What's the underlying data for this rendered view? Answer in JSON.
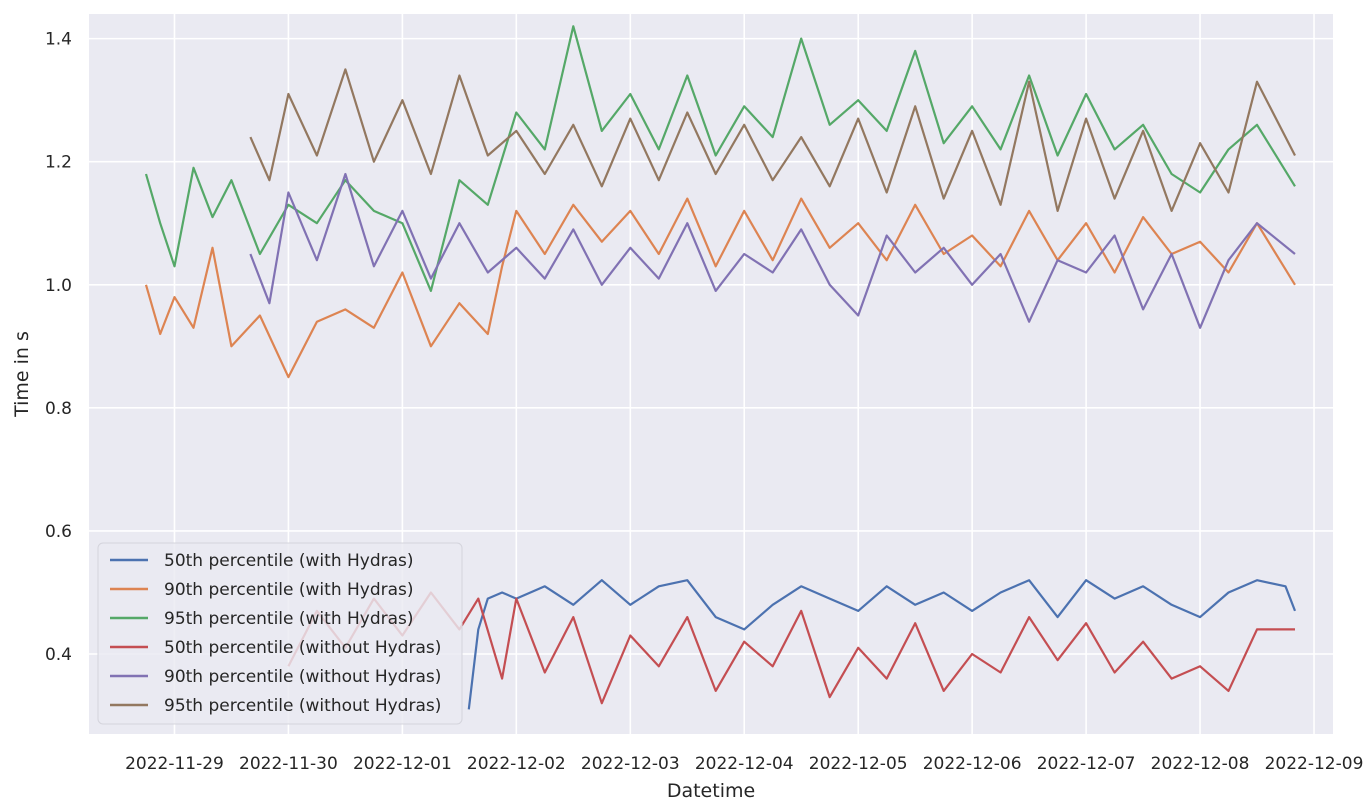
{
  "chart_data": {
    "type": "line",
    "title": "",
    "xlabel": "Datetime",
    "ylabel": "Time in s",
    "x_tick_labels": [
      "2022-11-29",
      "2022-11-30",
      "2022-12-01",
      "2022-12-02",
      "2022-12-03",
      "2022-12-04",
      "2022-12-05",
      "2022-12-06",
      "2022-12-07",
      "2022-12-08",
      "2022-12-09"
    ],
    "y_tick_labels": [
      "0.4",
      "0.6",
      "0.8",
      "1.0",
      "1.2",
      "1.4"
    ],
    "y_ticks": [
      0.4,
      0.6,
      0.8,
      1.0,
      1.2,
      1.4
    ],
    "xlim": [
      "2022-11-28T06:00",
      "2022-12-09T04:00"
    ],
    "ylim": [
      0.27,
      1.44
    ],
    "grid": true,
    "background": "#eaeaf2",
    "legend_position": "lower-left",
    "series": [
      {
        "name": "50th percentile (with Hydras)",
        "color": "#4c72b0",
        "points": [
          [
            "2022-12-01T14:00",
            0.31
          ],
          [
            "2022-12-01T16:00",
            0.44
          ],
          [
            "2022-12-01T18:00",
            0.49
          ],
          [
            "2022-12-01T21:00",
            0.5
          ],
          [
            "2022-12-02T00:00",
            0.49
          ],
          [
            "2022-12-02T06:00",
            0.51
          ],
          [
            "2022-12-02T12:00",
            0.48
          ],
          [
            "2022-12-02T18:00",
            0.52
          ],
          [
            "2022-12-03T00:00",
            0.48
          ],
          [
            "2022-12-03T06:00",
            0.51
          ],
          [
            "2022-12-03T12:00",
            0.52
          ],
          [
            "2022-12-03T18:00",
            0.46
          ],
          [
            "2022-12-04T00:00",
            0.44
          ],
          [
            "2022-12-04T06:00",
            0.48
          ],
          [
            "2022-12-04T12:00",
            0.51
          ],
          [
            "2022-12-04T18:00",
            0.49
          ],
          [
            "2022-12-05T00:00",
            0.47
          ],
          [
            "2022-12-05T06:00",
            0.51
          ],
          [
            "2022-12-05T12:00",
            0.48
          ],
          [
            "2022-12-05T18:00",
            0.5
          ],
          [
            "2022-12-06T00:00",
            0.47
          ],
          [
            "2022-12-06T06:00",
            0.5
          ],
          [
            "2022-12-06T12:00",
            0.52
          ],
          [
            "2022-12-06T18:00",
            0.46
          ],
          [
            "2022-12-07T00:00",
            0.52
          ],
          [
            "2022-12-07T06:00",
            0.49
          ],
          [
            "2022-12-07T12:00",
            0.51
          ],
          [
            "2022-12-07T18:00",
            0.48
          ],
          [
            "2022-12-08T00:00",
            0.46
          ],
          [
            "2022-12-08T06:00",
            0.5
          ],
          [
            "2022-12-08T12:00",
            0.52
          ],
          [
            "2022-12-08T18:00",
            0.51
          ],
          [
            "2022-12-08T20:00",
            0.47
          ]
        ]
      },
      {
        "name": "90th percentile (with Hydras)",
        "color": "#dd8452",
        "points": [
          [
            "2022-11-28T18:00",
            1.0
          ],
          [
            "2022-11-28T21:00",
            0.92
          ],
          [
            "2022-11-29T00:00",
            0.98
          ],
          [
            "2022-11-29T04:00",
            0.93
          ],
          [
            "2022-11-29T08:00",
            1.06
          ],
          [
            "2022-11-29T12:00",
            0.9
          ],
          [
            "2022-11-29T18:00",
            0.95
          ],
          [
            "2022-11-30T00:00",
            0.85
          ],
          [
            "2022-11-30T06:00",
            0.94
          ],
          [
            "2022-11-30T12:00",
            0.96
          ],
          [
            "2022-11-30T18:00",
            0.93
          ],
          [
            "2022-12-01T00:00",
            1.02
          ],
          [
            "2022-12-01T06:00",
            0.9
          ],
          [
            "2022-12-01T12:00",
            0.97
          ],
          [
            "2022-12-01T18:00",
            0.92
          ],
          [
            "2022-12-01T21:00",
            1.03
          ],
          [
            "2022-12-02T00:00",
            1.12
          ],
          [
            "2022-12-02T06:00",
            1.05
          ],
          [
            "2022-12-02T12:00",
            1.13
          ],
          [
            "2022-12-02T18:00",
            1.07
          ],
          [
            "2022-12-03T00:00",
            1.12
          ],
          [
            "2022-12-03T06:00",
            1.05
          ],
          [
            "2022-12-03T12:00",
            1.14
          ],
          [
            "2022-12-03T18:00",
            1.03
          ],
          [
            "2022-12-04T00:00",
            1.12
          ],
          [
            "2022-12-04T06:00",
            1.04
          ],
          [
            "2022-12-04T12:00",
            1.14
          ],
          [
            "2022-12-04T18:00",
            1.06
          ],
          [
            "2022-12-05T00:00",
            1.1
          ],
          [
            "2022-12-05T06:00",
            1.04
          ],
          [
            "2022-12-05T12:00",
            1.13
          ],
          [
            "2022-12-05T18:00",
            1.05
          ],
          [
            "2022-12-06T00:00",
            1.08
          ],
          [
            "2022-12-06T06:00",
            1.03
          ],
          [
            "2022-12-06T12:00",
            1.12
          ],
          [
            "2022-12-06T18:00",
            1.04
          ],
          [
            "2022-12-07T00:00",
            1.1
          ],
          [
            "2022-12-07T06:00",
            1.02
          ],
          [
            "2022-12-07T12:00",
            1.11
          ],
          [
            "2022-12-07T18:00",
            1.05
          ],
          [
            "2022-12-08T00:00",
            1.07
          ],
          [
            "2022-12-08T06:00",
            1.02
          ],
          [
            "2022-12-08T12:00",
            1.1
          ],
          [
            "2022-12-08T20:00",
            1.0
          ]
        ]
      },
      {
        "name": "95th percentile (with Hydras)",
        "color": "#55a868",
        "points": [
          [
            "2022-11-28T18:00",
            1.18
          ],
          [
            "2022-11-28T21:00",
            1.1
          ],
          [
            "2022-11-29T00:00",
            1.03
          ],
          [
            "2022-11-29T04:00",
            1.19
          ],
          [
            "2022-11-29T08:00",
            1.11
          ],
          [
            "2022-11-29T12:00",
            1.17
          ],
          [
            "2022-11-29T18:00",
            1.05
          ],
          [
            "2022-11-30T00:00",
            1.13
          ],
          [
            "2022-11-30T06:00",
            1.1
          ],
          [
            "2022-11-30T12:00",
            1.17
          ],
          [
            "2022-11-30T18:00",
            1.12
          ],
          [
            "2022-12-01T00:00",
            1.1
          ],
          [
            "2022-12-01T06:00",
            0.99
          ],
          [
            "2022-12-01T12:00",
            1.17
          ],
          [
            "2022-12-01T18:00",
            1.13
          ],
          [
            "2022-12-02T00:00",
            1.28
          ],
          [
            "2022-12-02T06:00",
            1.22
          ],
          [
            "2022-12-02T12:00",
            1.42
          ],
          [
            "2022-12-02T18:00",
            1.25
          ],
          [
            "2022-12-03T00:00",
            1.31
          ],
          [
            "2022-12-03T06:00",
            1.22
          ],
          [
            "2022-12-03T12:00",
            1.34
          ],
          [
            "2022-12-03T18:00",
            1.21
          ],
          [
            "2022-12-04T00:00",
            1.29
          ],
          [
            "2022-12-04T06:00",
            1.24
          ],
          [
            "2022-12-04T12:00",
            1.4
          ],
          [
            "2022-12-04T18:00",
            1.26
          ],
          [
            "2022-12-05T00:00",
            1.3
          ],
          [
            "2022-12-05T06:00",
            1.25
          ],
          [
            "2022-12-05T12:00",
            1.38
          ],
          [
            "2022-12-05T18:00",
            1.23
          ],
          [
            "2022-12-06T00:00",
            1.29
          ],
          [
            "2022-12-06T06:00",
            1.22
          ],
          [
            "2022-12-06T12:00",
            1.34
          ],
          [
            "2022-12-06T18:00",
            1.21
          ],
          [
            "2022-12-07T00:00",
            1.31
          ],
          [
            "2022-12-07T06:00",
            1.22
          ],
          [
            "2022-12-07T12:00",
            1.26
          ],
          [
            "2022-12-07T18:00",
            1.18
          ],
          [
            "2022-12-08T00:00",
            1.15
          ],
          [
            "2022-12-08T06:00",
            1.22
          ],
          [
            "2022-12-08T12:00",
            1.26
          ],
          [
            "2022-12-08T20:00",
            1.16
          ]
        ]
      },
      {
        "name": "50th percentile (without Hydras)",
        "color": "#c44e52",
        "points": [
          [
            "2022-11-30T00:00",
            0.38
          ],
          [
            "2022-11-30T06:00",
            0.47
          ],
          [
            "2022-11-30T12:00",
            0.41
          ],
          [
            "2022-11-30T18:00",
            0.49
          ],
          [
            "2022-12-01T00:00",
            0.43
          ],
          [
            "2022-12-01T06:00",
            0.5
          ],
          [
            "2022-12-01T12:00",
            0.44
          ],
          [
            "2022-12-01T16:00",
            0.49
          ],
          [
            "2022-12-01T21:00",
            0.36
          ],
          [
            "2022-12-02T00:00",
            0.49
          ],
          [
            "2022-12-02T06:00",
            0.37
          ],
          [
            "2022-12-02T12:00",
            0.46
          ],
          [
            "2022-12-02T18:00",
            0.32
          ],
          [
            "2022-12-03T00:00",
            0.43
          ],
          [
            "2022-12-03T06:00",
            0.38
          ],
          [
            "2022-12-03T12:00",
            0.46
          ],
          [
            "2022-12-03T18:00",
            0.34
          ],
          [
            "2022-12-04T00:00",
            0.42
          ],
          [
            "2022-12-04T06:00",
            0.38
          ],
          [
            "2022-12-04T12:00",
            0.47
          ],
          [
            "2022-12-04T18:00",
            0.33
          ],
          [
            "2022-12-05T00:00",
            0.41
          ],
          [
            "2022-12-05T06:00",
            0.36
          ],
          [
            "2022-12-05T12:00",
            0.45
          ],
          [
            "2022-12-05T18:00",
            0.34
          ],
          [
            "2022-12-06T00:00",
            0.4
          ],
          [
            "2022-12-06T06:00",
            0.37
          ],
          [
            "2022-12-06T12:00",
            0.46
          ],
          [
            "2022-12-06T18:00",
            0.39
          ],
          [
            "2022-12-07T00:00",
            0.45
          ],
          [
            "2022-12-07T06:00",
            0.37
          ],
          [
            "2022-12-07T12:00",
            0.42
          ],
          [
            "2022-12-07T18:00",
            0.36
          ],
          [
            "2022-12-08T00:00",
            0.38
          ],
          [
            "2022-12-08T06:00",
            0.34
          ],
          [
            "2022-12-08T12:00",
            0.44
          ],
          [
            "2022-12-08T20:00",
            0.44
          ]
        ]
      },
      {
        "name": "90th percentile (without Hydras)",
        "color": "#8172b3",
        "points": [
          [
            "2022-11-29T16:00",
            1.05
          ],
          [
            "2022-11-29T20:00",
            0.97
          ],
          [
            "2022-11-30T00:00",
            1.15
          ],
          [
            "2022-11-30T06:00",
            1.04
          ],
          [
            "2022-11-30T12:00",
            1.18
          ],
          [
            "2022-11-30T18:00",
            1.03
          ],
          [
            "2022-12-01T00:00",
            1.12
          ],
          [
            "2022-12-01T06:00",
            1.01
          ],
          [
            "2022-12-01T12:00",
            1.1
          ],
          [
            "2022-12-01T18:00",
            1.02
          ],
          [
            "2022-12-02T00:00",
            1.06
          ],
          [
            "2022-12-02T06:00",
            1.01
          ],
          [
            "2022-12-02T12:00",
            1.09
          ],
          [
            "2022-12-02T18:00",
            1.0
          ],
          [
            "2022-12-03T00:00",
            1.06
          ],
          [
            "2022-12-03T06:00",
            1.01
          ],
          [
            "2022-12-03T12:00",
            1.1
          ],
          [
            "2022-12-03T18:00",
            0.99
          ],
          [
            "2022-12-04T00:00",
            1.05
          ],
          [
            "2022-12-04T06:00",
            1.02
          ],
          [
            "2022-12-04T12:00",
            1.09
          ],
          [
            "2022-12-04T18:00",
            1.0
          ],
          [
            "2022-12-05T00:00",
            0.95
          ],
          [
            "2022-12-05T06:00",
            1.08
          ],
          [
            "2022-12-05T12:00",
            1.02
          ],
          [
            "2022-12-05T18:00",
            1.06
          ],
          [
            "2022-12-06T00:00",
            1.0
          ],
          [
            "2022-12-06T06:00",
            1.05
          ],
          [
            "2022-12-06T12:00",
            0.94
          ],
          [
            "2022-12-06T18:00",
            1.04
          ],
          [
            "2022-12-07T00:00",
            1.02
          ],
          [
            "2022-12-07T06:00",
            1.08
          ],
          [
            "2022-12-07T12:00",
            0.96
          ],
          [
            "2022-12-07T18:00",
            1.05
          ],
          [
            "2022-12-08T00:00",
            0.93
          ],
          [
            "2022-12-08T06:00",
            1.04
          ],
          [
            "2022-12-08T12:00",
            1.1
          ],
          [
            "2022-12-08T20:00",
            1.05
          ]
        ]
      },
      {
        "name": "95th percentile (without Hydras)",
        "color": "#937860",
        "points": [
          [
            "2022-11-29T16:00",
            1.24
          ],
          [
            "2022-11-29T20:00",
            1.17
          ],
          [
            "2022-11-30T00:00",
            1.31
          ],
          [
            "2022-11-30T06:00",
            1.21
          ],
          [
            "2022-11-30T12:00",
            1.35
          ],
          [
            "2022-11-30T18:00",
            1.2
          ],
          [
            "2022-12-01T00:00",
            1.3
          ],
          [
            "2022-12-01T06:00",
            1.18
          ],
          [
            "2022-12-01T12:00",
            1.34
          ],
          [
            "2022-12-01T18:00",
            1.21
          ],
          [
            "2022-12-02T00:00",
            1.25
          ],
          [
            "2022-12-02T06:00",
            1.18
          ],
          [
            "2022-12-02T12:00",
            1.26
          ],
          [
            "2022-12-02T18:00",
            1.16
          ],
          [
            "2022-12-03T00:00",
            1.27
          ],
          [
            "2022-12-03T06:00",
            1.17
          ],
          [
            "2022-12-03T12:00",
            1.28
          ],
          [
            "2022-12-03T18:00",
            1.18
          ],
          [
            "2022-12-04T00:00",
            1.26
          ],
          [
            "2022-12-04T06:00",
            1.17
          ],
          [
            "2022-12-04T12:00",
            1.24
          ],
          [
            "2022-12-04T18:00",
            1.16
          ],
          [
            "2022-12-05T00:00",
            1.27
          ],
          [
            "2022-12-05T06:00",
            1.15
          ],
          [
            "2022-12-05T12:00",
            1.29
          ],
          [
            "2022-12-05T18:00",
            1.14
          ],
          [
            "2022-12-06T00:00",
            1.25
          ],
          [
            "2022-12-06T06:00",
            1.13
          ],
          [
            "2022-12-06T12:00",
            1.33
          ],
          [
            "2022-12-06T18:00",
            1.12
          ],
          [
            "2022-12-07T00:00",
            1.27
          ],
          [
            "2022-12-07T06:00",
            1.14
          ],
          [
            "2022-12-07T12:00",
            1.25
          ],
          [
            "2022-12-07T18:00",
            1.12
          ],
          [
            "2022-12-08T00:00",
            1.23
          ],
          [
            "2022-12-08T06:00",
            1.15
          ],
          [
            "2022-12-08T12:00",
            1.33
          ],
          [
            "2022-12-08T20:00",
            1.21
          ]
        ]
      }
    ]
  }
}
